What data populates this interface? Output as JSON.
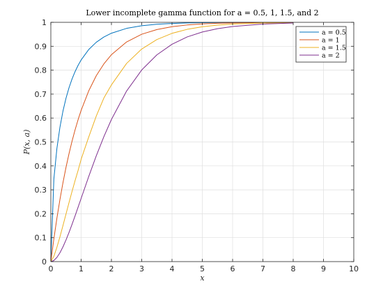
{
  "chart_data": {
    "type": "line",
    "title": "Lower incomplete gamma function for a = 0.5, 1, 1.5, and 2",
    "xlabel": "x",
    "ylabel": "P(x, a)",
    "xlim": [
      0,
      10
    ],
    "ylim": [
      0,
      1
    ],
    "xticks": [
      0,
      1,
      2,
      3,
      4,
      5,
      6,
      7,
      8,
      9,
      10
    ],
    "yticks": [
      0,
      0.1,
      0.2,
      0.3,
      0.4,
      0.5,
      0.6,
      0.7,
      0.8,
      0.9,
      1
    ],
    "xtick_labels": [
      "0",
      "1",
      "2",
      "3",
      "4",
      "5",
      "6",
      "7",
      "8",
      "9",
      "10"
    ],
    "ytick_labels": [
      "0",
      "0.1",
      "0.2",
      "0.3",
      "0.4",
      "0.5",
      "0.6",
      "0.7",
      "0.8",
      "0.9",
      "1"
    ],
    "grid": true,
    "legend_position": "top-right",
    "x": [
      0,
      0.1,
      0.2,
      0.3,
      0.4,
      0.5,
      0.6,
      0.7,
      0.8,
      0.9,
      1,
      1.25,
      1.5,
      1.75,
      2,
      2.5,
      3,
      3.5,
      4,
      4.5,
      5,
      5.5,
      6,
      7,
      8
    ],
    "series": [
      {
        "name": "a = 0.5",
        "color": "#0072bd",
        "values": [
          0,
          0.3453,
          0.4729,
          0.5614,
          0.6289,
          0.6827,
          0.7267,
          0.7633,
          0.7941,
          0.8203,
          0.8427,
          0.8862,
          0.9167,
          0.9386,
          0.9545,
          0.9747,
          0.9857,
          0.9918,
          0.9953,
          0.9973,
          0.9984,
          0.9991,
          0.9995,
          0.9998,
          0.9999
        ]
      },
      {
        "name": "a = 1",
        "color": "#d95319",
        "values": [
          0,
          0.0952,
          0.1813,
          0.2592,
          0.3297,
          0.3935,
          0.4512,
          0.5034,
          0.5507,
          0.5934,
          0.6321,
          0.7135,
          0.7769,
          0.8262,
          0.8647,
          0.9179,
          0.9502,
          0.9698,
          0.9817,
          0.9889,
          0.9933,
          0.9959,
          0.9975,
          0.9991,
          0.9997
        ]
      },
      {
        "name": "a = 1.5",
        "color": "#edb120",
        "values": [
          0,
          0.0224,
          0.0598,
          0.1036,
          0.1505,
          0.1987,
          0.2466,
          0.2935,
          0.3385,
          0.3813,
          0.4276,
          0.5205,
          0.6084,
          0.6836,
          0.7385,
          0.8282,
          0.8884,
          0.9281,
          0.954,
          0.9707,
          0.9814,
          0.9883,
          0.9926,
          0.9971,
          0.9989
        ]
      },
      {
        "name": "a = 2",
        "color": "#7e2f8e",
        "values": [
          0,
          0.0047,
          0.0175,
          0.0369,
          0.0616,
          0.0902,
          0.1219,
          0.1558,
          0.1912,
          0.2275,
          0.2642,
          0.3554,
          0.4422,
          0.5221,
          0.594,
          0.7127,
          0.8009,
          0.8641,
          0.9084,
          0.9389,
          0.9596,
          0.9734,
          0.9826,
          0.9927,
          0.997
        ]
      }
    ]
  }
}
